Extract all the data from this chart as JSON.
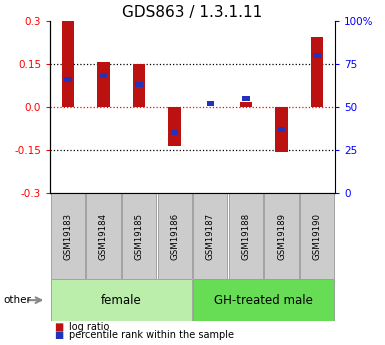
{
  "title": "GDS863 / 1.3.1.11",
  "samples": [
    "GSM19183",
    "GSM19184",
    "GSM19185",
    "GSM19186",
    "GSM19187",
    "GSM19188",
    "GSM19189",
    "GSM19190"
  ],
  "log_ratio": [
    0.305,
    0.155,
    0.15,
    -0.135,
    0.0,
    0.018,
    -0.155,
    0.245
  ],
  "percentile_rank": [
    0.66,
    0.68,
    0.63,
    0.35,
    0.52,
    0.55,
    0.37,
    0.8
  ],
  "ylim": [
    -0.3,
    0.3
  ],
  "yticks_red": [
    -0.3,
    -0.15,
    0.0,
    0.15,
    0.3
  ],
  "yticks_blue_labels": [
    "0",
    "25",
    "50",
    "75",
    "100%"
  ],
  "yticks_blue_vals": [
    -0.3,
    -0.15,
    0.0,
    0.15,
    0.3
  ],
  "hlines_dotted": [
    -0.15,
    0.15
  ],
  "hline_red": 0.0,
  "female_samples": [
    0,
    1,
    2,
    3
  ],
  "gh_samples": [
    4,
    5,
    6,
    7
  ],
  "bar_color": "#bb1111",
  "blue_color": "#2233bb",
  "female_color": "#bbeeaa",
  "gh_color": "#66dd55",
  "bg_color": "#ffffff",
  "label_fontsize": 7.5,
  "title_fontsize": 11,
  "bar_width": 0.35,
  "blue_marker_size": 0.018
}
